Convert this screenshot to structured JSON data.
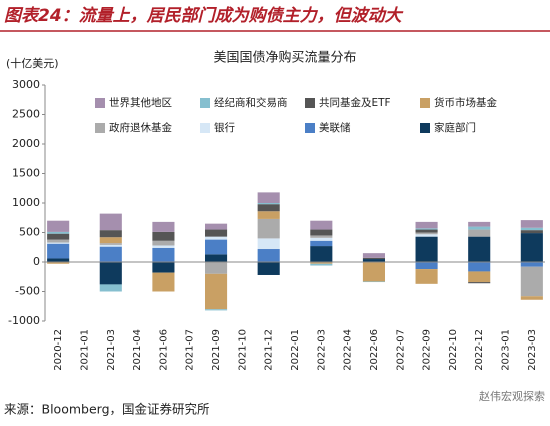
{
  "header": {
    "title": "图表24：流量上，居民部门成为购债主力，但波动大"
  },
  "chart_data": {
    "type": "stacked_bar",
    "title": "美国国债净购买流量分布",
    "y_label": "(十亿美元)",
    "categories": [
      "2020-12",
      "2021-01",
      "2021-03",
      "2021-04",
      "2021-06",
      "2021-07",
      "2021-09",
      "2021-10",
      "2021-12",
      "2022-01",
      "2022-03",
      "2022-04",
      "2022-06",
      "2022-07",
      "2022-09",
      "2022-10",
      "2022-12",
      "2023-01",
      "2023-03"
    ],
    "series": [
      {
        "name": "世界其他地区",
        "color": "#a58fae",
        "values": [
          190,
          null,
          280,
          null,
          170,
          null,
          100,
          null,
          180,
          null,
          150,
          null,
          80,
          null,
          110,
          null,
          80,
          null,
          130
        ]
      },
      {
        "name": "经纪商和交易商",
        "color": "#86bfcf",
        "values": [
          30,
          null,
          -120,
          null,
          0,
          null,
          -20,
          null,
          20,
          null,
          -30,
          null,
          -10,
          null,
          20,
          null,
          50,
          null,
          40
        ]
      },
      {
        "name": "共同基金及ETF",
        "color": "#555555",
        "values": [
          100,
          null,
          120,
          null,
          150,
          null,
          120,
          null,
          120,
          null,
          100,
          null,
          20,
          null,
          50,
          null,
          -20,
          null,
          50
        ]
      },
      {
        "name": "货币市场基金",
        "color": "#c9a064",
        "values": [
          -30,
          null,
          100,
          null,
          -320,
          null,
          -600,
          null,
          130,
          null,
          -30,
          null,
          -330,
          null,
          -250,
          null,
          -180,
          null,
          -60
        ]
      },
      {
        "name": "政府退休基金",
        "color": "#ababab",
        "values": [
          50,
          null,
          30,
          null,
          80,
          null,
          -200,
          null,
          330,
          null,
          40,
          null,
          0,
          null,
          30,
          null,
          120,
          null,
          -500
        ]
      },
      {
        "name": "银行",
        "color": "#d6e7f6",
        "values": [
          20,
          null,
          30,
          null,
          40,
          null,
          50,
          null,
          180,
          null,
          50,
          null,
          0,
          null,
          40,
          null,
          0,
          null,
          0
        ]
      },
      {
        "name": "美联储",
        "color": "#4b7fc6",
        "values": [
          250,
          null,
          260,
          null,
          240,
          null,
          250,
          null,
          220,
          null,
          90,
          null,
          0,
          null,
          -120,
          null,
          -160,
          null,
          -80
        ]
      },
      {
        "name": "家庭部门",
        "color": "#0e3a5d",
        "values": [
          60,
          null,
          -380,
          null,
          -180,
          null,
          130,
          null,
          -220,
          null,
          270,
          null,
          50,
          null,
          430,
          null,
          430,
          null,
          490
        ]
      }
    ],
    "ylim": [
      -1000,
      3000
    ],
    "yticks": [
      -1000,
      -500,
      0,
      500,
      1000,
      1500,
      2000,
      2500,
      3000
    ]
  },
  "footer": {
    "source": "来源：Bloomberg，国金证券研究所",
    "watermark": "赵伟宏观探索"
  }
}
